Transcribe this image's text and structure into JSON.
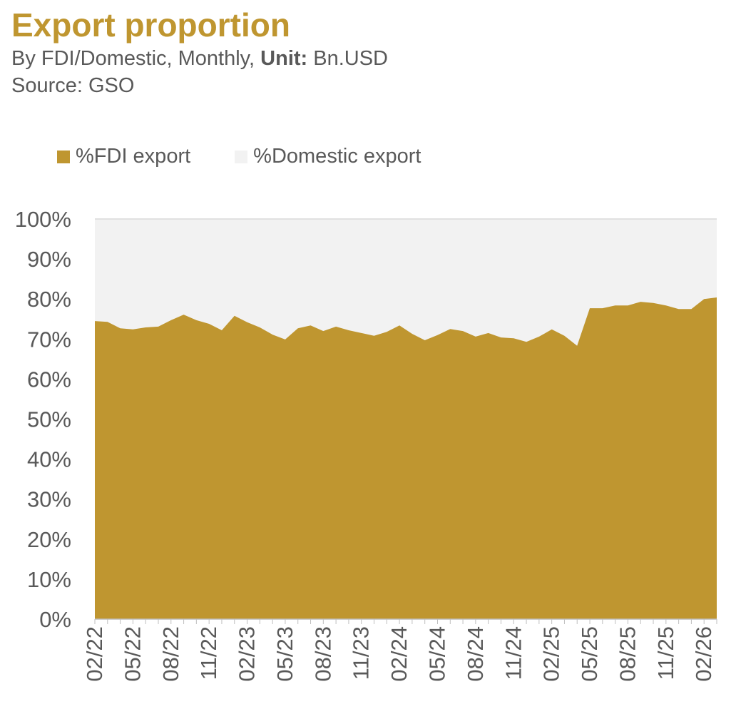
{
  "header": {
    "title": "Export proportion",
    "subtitle_prefix": "By FDI/Domestic, Monthly, ",
    "unit_label": "Unit:",
    "unit_value": " Bn.USD",
    "source": "Source: GSO"
  },
  "chart_data": {
    "type": "area",
    "stacked": true,
    "title": "Export proportion",
    "ylim": [
      0,
      100
    ],
    "yticks": [
      "0%",
      "10%",
      "20%",
      "30%",
      "40%",
      "50%",
      "60%",
      "70%",
      "80%",
      "90%",
      "100%"
    ],
    "x": [
      "02/22",
      "03/22",
      "04/22",
      "05/22",
      "06/22",
      "07/22",
      "08/22",
      "09/22",
      "10/22",
      "11/22",
      "12/22",
      "01/23",
      "02/23",
      "03/23",
      "04/23",
      "05/23",
      "06/23",
      "07/23",
      "08/23",
      "09/23",
      "10/23",
      "11/23",
      "12/23",
      "01/24",
      "02/24",
      "03/24",
      "04/24",
      "05/24",
      "06/24",
      "07/24",
      "08/24",
      "09/24",
      "10/24",
      "11/24",
      "12/24",
      "01/25",
      "02/25",
      "03/25",
      "04/25",
      "05/25",
      "06/25",
      "07/25",
      "08/25",
      "09/25",
      "10/25",
      "11/25",
      "12/25",
      "01/26",
      "02/26",
      "03/26"
    ],
    "xtick_labels": [
      "02/22",
      "05/22",
      "08/22",
      "11/22",
      "02/23",
      "05/23",
      "08/23",
      "11/23",
      "02/24",
      "05/24",
      "08/24",
      "11/24",
      "02/25",
      "05/25",
      "08/25",
      "11/25",
      "02/26"
    ],
    "series": [
      {
        "name": "%FDI export",
        "color": "#bf9630",
        "values": [
          74.5,
          74.3,
          72.7,
          72.4,
          72.9,
          73.1,
          74.7,
          76.1,
          74.7,
          73.8,
          72.2,
          75.8,
          74.2,
          72.9,
          71.1,
          69.9,
          72.7,
          73.4,
          72.0,
          73.1,
          72.2,
          71.5,
          70.8,
          71.8,
          73.4,
          71.3,
          69.7,
          71.0,
          72.5,
          72.0,
          70.6,
          71.5,
          70.4,
          70.2,
          69.3,
          70.6,
          72.4,
          70.8,
          68.3,
          77.7,
          77.7,
          78.4,
          78.4,
          79.3,
          79.0,
          78.4,
          77.5,
          77.5,
          80.0,
          80.4
        ]
      },
      {
        "name": "%Domestic export",
        "color": "#f2f2f2",
        "values": "remainder to 100%"
      }
    ],
    "legend_position": "top-left"
  }
}
